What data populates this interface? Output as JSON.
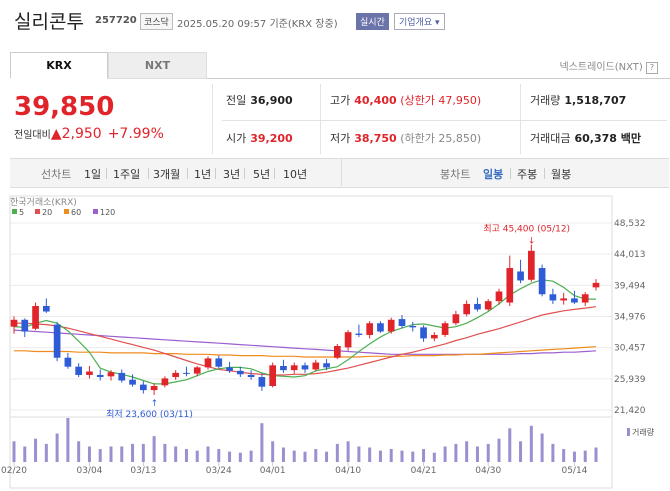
{
  "header": {
    "name": "실리콘투",
    "code": "257720",
    "market": "코스닥",
    "datetime": "2025.05.20 09:57",
    "basis": "기준(KRX 장중)",
    "realtime": "실시간",
    "corp_info": "기업개요"
  },
  "tabs": {
    "krx": "KRX",
    "nxt": "NXT",
    "nxt_link": "넥스트레이드(NXT)"
  },
  "price": {
    "current": "39,850",
    "change_label": "전일대비",
    "arrow": "▲",
    "change": "2,950",
    "pct": "+7.99%"
  },
  "summary": {
    "prev_label": "전일",
    "prev": "36,900",
    "high_label": "고가",
    "high": "40,400",
    "upper_limit": "(상한가 47,950)",
    "vol_label": "거래량",
    "vol": "1,518,707",
    "open_label": "시가",
    "open": "39,200",
    "low_label": "저가",
    "low": "38,750",
    "lower_limit": "(하한가 25,850)",
    "amt_label": "거래대금",
    "amt": "60,378 백만"
  },
  "period": {
    "line": "선차트",
    "opts": [
      "1일",
      "1주일",
      "3개월",
      "1년",
      "3년",
      "5년",
      "10년"
    ],
    "bong": "봉차트",
    "bopts": [
      "일봉",
      "주봉",
      "월봉"
    ],
    "active": "일봉"
  },
  "chart_data": {
    "type": "candlestick",
    "source": "한국거래소(KRX)",
    "legend": [
      {
        "name": "5",
        "color": "#4caf50"
      },
      {
        "name": "20",
        "color": "#e05050"
      },
      {
        "name": "60",
        "color": "#f08c1e"
      },
      {
        "name": "120",
        "color": "#9b5fd0"
      }
    ],
    "y_ticks": [
      "48,532",
      "44,013",
      "39,494",
      "34,976",
      "30,457",
      "25,939",
      "21,420"
    ],
    "ylim": [
      21420,
      48532
    ],
    "x_labels": [
      "02/20",
      "03/04",
      "03/13",
      "03/24",
      "04/01",
      "04/10",
      "04/21",
      "04/30",
      "05/14"
    ],
    "max_label": "최고 45,400 (05/12)",
    "min_label": "최저 23,600 (03/11)",
    "volume_label": "거래량",
    "candles": [
      [
        33500,
        35000,
        32500,
        34500
      ],
      [
        34500,
        34700,
        32000,
        32800
      ],
      [
        33200,
        37000,
        33000,
        36500
      ],
      [
        36500,
        37600,
        35500,
        35700
      ],
      [
        33800,
        34200,
        28500,
        29000
      ],
      [
        29000,
        29700,
        27400,
        27700
      ],
      [
        27700,
        28200,
        26200,
        26500
      ],
      [
        26500,
        27800,
        26000,
        27000
      ],
      [
        26500,
        27300,
        25700,
        26200
      ],
      [
        26300,
        27200,
        25700,
        26900
      ],
      [
        26800,
        27300,
        25400,
        25700
      ],
      [
        25800,
        26600,
        24800,
        25100
      ],
      [
        25100,
        25600,
        23800,
        24300
      ],
      [
        24300,
        25300,
        23600,
        24900
      ],
      [
        25000,
        26300,
        24700,
        26000
      ],
      [
        26200,
        27200,
        25800,
        26800
      ],
      [
        26800,
        27700,
        26300,
        26700
      ],
      [
        26700,
        27800,
        26300,
        27600
      ],
      [
        27600,
        29200,
        27300,
        28900
      ],
      [
        28900,
        29300,
        27400,
        27700
      ],
      [
        27600,
        28400,
        26800,
        27100
      ],
      [
        27100,
        27700,
        26200,
        26600
      ],
      [
        26500,
        27200,
        25800,
        26200
      ],
      [
        26200,
        26700,
        24200,
        24800
      ],
      [
        24900,
        28300,
        24700,
        27900
      ],
      [
        27800,
        28700,
        26800,
        27200
      ],
      [
        27200,
        28300,
        26700,
        27900
      ],
      [
        27900,
        28300,
        26800,
        27300
      ],
      [
        27300,
        28700,
        27000,
        28300
      ],
      [
        28200,
        28800,
        27200,
        27600
      ],
      [
        29000,
        31000,
        28800,
        30700
      ],
      [
        30500,
        33000,
        30000,
        32700
      ],
      [
        32500,
        33800,
        32000,
        32300
      ],
      [
        32300,
        34300,
        31800,
        34000
      ],
      [
        34000,
        34300,
        32600,
        32800
      ],
      [
        32800,
        34800,
        32500,
        34500
      ],
      [
        34600,
        35200,
        33300,
        33600
      ],
      [
        33600,
        34200,
        32800,
        33400
      ],
      [
        33400,
        33700,
        31300,
        31800
      ],
      [
        31800,
        32700,
        31400,
        32300
      ],
      [
        32300,
        34300,
        32000,
        34000
      ],
      [
        34000,
        35800,
        33700,
        35300
      ],
      [
        35300,
        37300,
        35000,
        36800
      ],
      [
        36800,
        37700,
        35700,
        36000
      ],
      [
        36000,
        37500,
        35800,
        37200
      ],
      [
        37200,
        39000,
        36700,
        38600
      ],
      [
        37000,
        43800,
        36500,
        42000
      ],
      [
        41500,
        43200,
        39800,
        40200
      ],
      [
        40300,
        45400,
        40000,
        44500
      ],
      [
        42000,
        42500,
        37900,
        38200
      ],
      [
        38200,
        39000,
        36800,
        37300
      ],
      [
        37300,
        38400,
        36700,
        37600
      ],
      [
        37600,
        38700,
        36800,
        37000
      ],
      [
        37000,
        38500,
        36500,
        38200
      ],
      [
        39200,
        40400,
        38750,
        39850
      ]
    ],
    "ma5": [
      33500,
      33400,
      34000,
      34400,
      34000,
      32900,
      31400,
      29800,
      27500,
      26900,
      26600,
      26200,
      25700,
      25200,
      25200,
      25500,
      25800,
      26400,
      27000,
      27400,
      27600,
      27600,
      27400,
      26800,
      26400,
      26300,
      26200,
      26400,
      27100,
      27400,
      27700,
      28700,
      29900,
      31000,
      32000,
      32800,
      33300,
      33800,
      33900,
      33600,
      33300,
      33500,
      34000,
      34800,
      35700,
      36800,
      38100,
      39000,
      39800,
      40300,
      40100,
      39200,
      38000,
      37500,
      37500
    ],
    "ma20": [
      34000,
      34000,
      33900,
      33800,
      33600,
      33300,
      32900,
      32500,
      32100,
      31700,
      31300,
      30900,
      30500,
      30100,
      29600,
      29100,
      28600,
      28100,
      27700,
      27300,
      27100,
      26900,
      26700,
      26600,
      26500,
      26500,
      26600,
      26600,
      26700,
      26900,
      27200,
      27500,
      27900,
      28300,
      28700,
      29100,
      29500,
      29800,
      30200,
      30600,
      31000,
      31500,
      31900,
      32400,
      32800,
      33200,
      33700,
      34200,
      34700,
      35200,
      35500,
      35800,
      36000,
      36200,
      36400
    ],
    "ma60": [
      30000,
      30000,
      29900,
      29900,
      29900,
      29900,
      29800,
      29800,
      29800,
      29700,
      29700,
      29700,
      29700,
      29600,
      29600,
      29600,
      29500,
      29500,
      29500,
      29400,
      29400,
      29300,
      29300,
      29300,
      29200,
      29200,
      29200,
      29100,
      29100,
      29100,
      29100,
      29100,
      29100,
      29200,
      29200,
      29200,
      29200,
      29300,
      29300,
      29300,
      29400,
      29400,
      29500,
      29500,
      29600,
      29700,
      29800,
      29900,
      30000,
      30100,
      30200,
      30300,
      30400,
      30500,
      30600
    ],
    "ma120": [
      33000,
      32900,
      32800,
      32700,
      32600,
      32500,
      32400,
      32300,
      32200,
      32100,
      32000,
      31900,
      31800,
      31700,
      31600,
      31500,
      31400,
      31300,
      31200,
      31100,
      31000,
      30900,
      30800,
      30700,
      30600,
      30500,
      30400,
      30300,
      30200,
      30100,
      30000,
      29900,
      29800,
      29700,
      29600,
      29500,
      29500,
      29500,
      29500,
      29500,
      29500,
      29500,
      29500,
      29500,
      29500,
      29500,
      29500,
      29600,
      29600,
      29700,
      29700,
      29800,
      29800,
      29900,
      30000
    ],
    "volume": [
      40,
      30,
      45,
      35,
      55,
      85,
      40,
      30,
      25,
      30,
      30,
      35,
      35,
      50,
      35,
      30,
      25,
      22,
      30,
      25,
      20,
      18,
      22,
      75,
      40,
      28,
      22,
      20,
      25,
      20,
      35,
      40,
      30,
      28,
      22,
      25,
      22,
      20,
      25,
      18,
      30,
      35,
      40,
      30,
      35,
      45,
      65,
      40,
      70,
      55,
      35,
      25,
      20,
      22,
      28
    ]
  }
}
